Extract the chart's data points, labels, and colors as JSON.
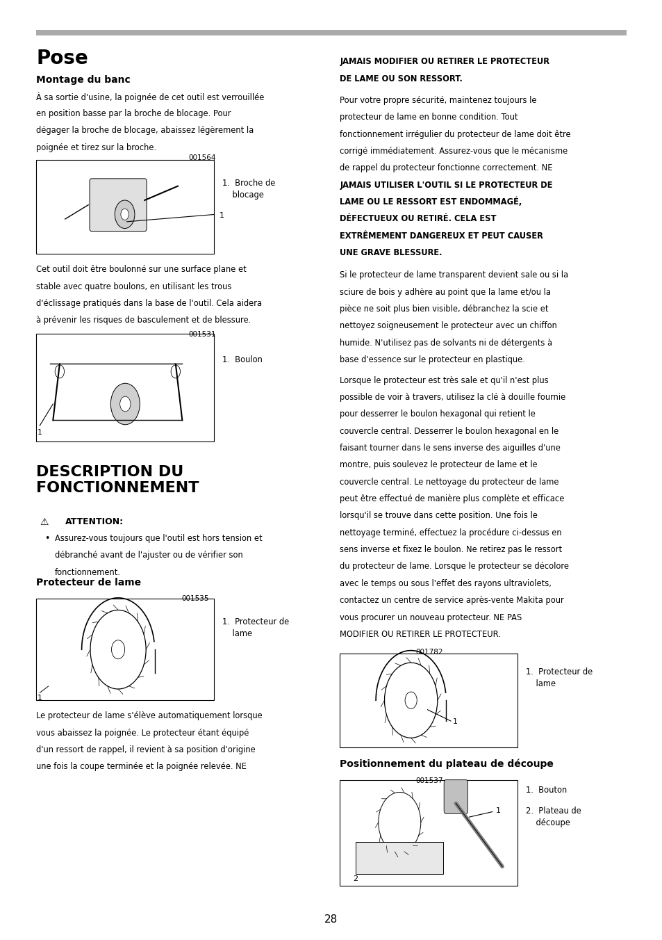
{
  "page_number": "28",
  "background_color": "#ffffff",
  "top_bar_color": "#aaaaaa",
  "title_left": "Pose",
  "section1_left": "Montage du banc",
  "para1_left": "À sa sortie d'usine, la poignée de cet outil est verrouillée en position basse par la broche de blocage. Pour dégager la broche de blocage, abaissez légèrement la poignée et tirez sur la broche.",
  "fig1_code": "001564",
  "fig1_label": "1.  Broche de\n    blocage",
  "para2_left": "Cet outil doit être boulonné sur une surface plane et stable avec quatre boulons, en utilisant les trous d'éclissage pratiqués dans la base de l'outil. Cela aidera à prévenir les risques de basculement et de blessure.",
  "fig2_code": "001531",
  "fig2_label": "1.  Boulon",
  "title2_left": "DESCRIPTION DU\nFONCTIONNEMENT",
  "attention_label": "ATTENTION:",
  "attention_bullet": "Assurez-vous toujours que l'outil est hors tension et débranché avant de l'ajuster ou de vérifier son fonctionnement.",
  "section2_left": "Protecteur de lame",
  "fig3_code": "001535",
  "fig3_label": "1.  Protecteur de\n    lame",
  "para3_left": "Le protecteur de lame s'élève automatiquement lorsque vous abaissez la poignée. Le protecteur étant équipé d'un ressort de rappel, il revient à sa position d'origine une fois la coupe terminée et la poignée relevée. NE",
  "right_col_para1": "JAMAIS MODIFIER OU RETIRER LE PROTECTEUR DE LAME OU SON RESSORT.",
  "right_col_para2": "Pour votre propre sécurité, maintenez toujours le protecteur de lame en bonne condition. Tout fonctionnement irrégulier du protecteur de lame doit être corrigé immédiatement. Assurez-vous que le mécanisme de rappel du protecteur fonctionne correctement. NE JAMAIS UTILISER L'OUTIL SI LE PROTECTEUR DE LAME OU LE RESSORT EST ENDOMMAGÉ, DÉFECTUEUX OU RETIRÉ. CELA EST EXTRÊMEMENT DANGEREUX ET PEUT CAUSER UNE GRAVE BLESSURE.",
  "right_col_para3": "Si le protecteur de lame transparent devient sale ou si la sciure de bois y adhère au point que la lame et/ou la pièce ne soit plus bien visible, débranchez la scie et nettoyez soigneusement le protecteur avec un chiffon humide. N'utilisez pas de solvants ni de détergents à base d'essence sur le protecteur en plastique.",
  "right_col_para4": "Lorsque le protecteur est très sale et qu'il n'est plus possible de voir à travers, utilisez la clé à douille fournie pour desserrer le boulon hexagonal qui retient le couvercle central. Desserrer le boulon hexagonal en le faisant tourner dans le sens inverse des aiguilles d'une montre, puis soulevez le protecteur de lame et le couvercle central. Le nettoyage du protecteur de lame peut être effectué de manière plus complète et efficace lorsqu'il se trouve dans cette position. Une fois le nettoyage terminé, effectuez la procédure ci-dessus en sens inverse et fixez le boulon. Ne retirez pas le ressort du protecteur de lame. Lorsque le protecteur se décolore avec le temps ou sous l'effet des rayons ultraviolets, contactez un centre de service après-vente Makita pour vous procurer un nouveau protecteur. NE PAS MODIFIER OU RETIRER LE PROTECTEUR.",
  "fig4_code": "001782",
  "fig4_label": "1.  Protecteur de\n    lame",
  "section3_right": "Positionnement du plateau de découpe",
  "fig5_code": "001537",
  "fig5_label1": "1.  Bouton",
  "fig5_label2": "2.  Plateau de\n    découpe",
  "text_color": "#000000"
}
